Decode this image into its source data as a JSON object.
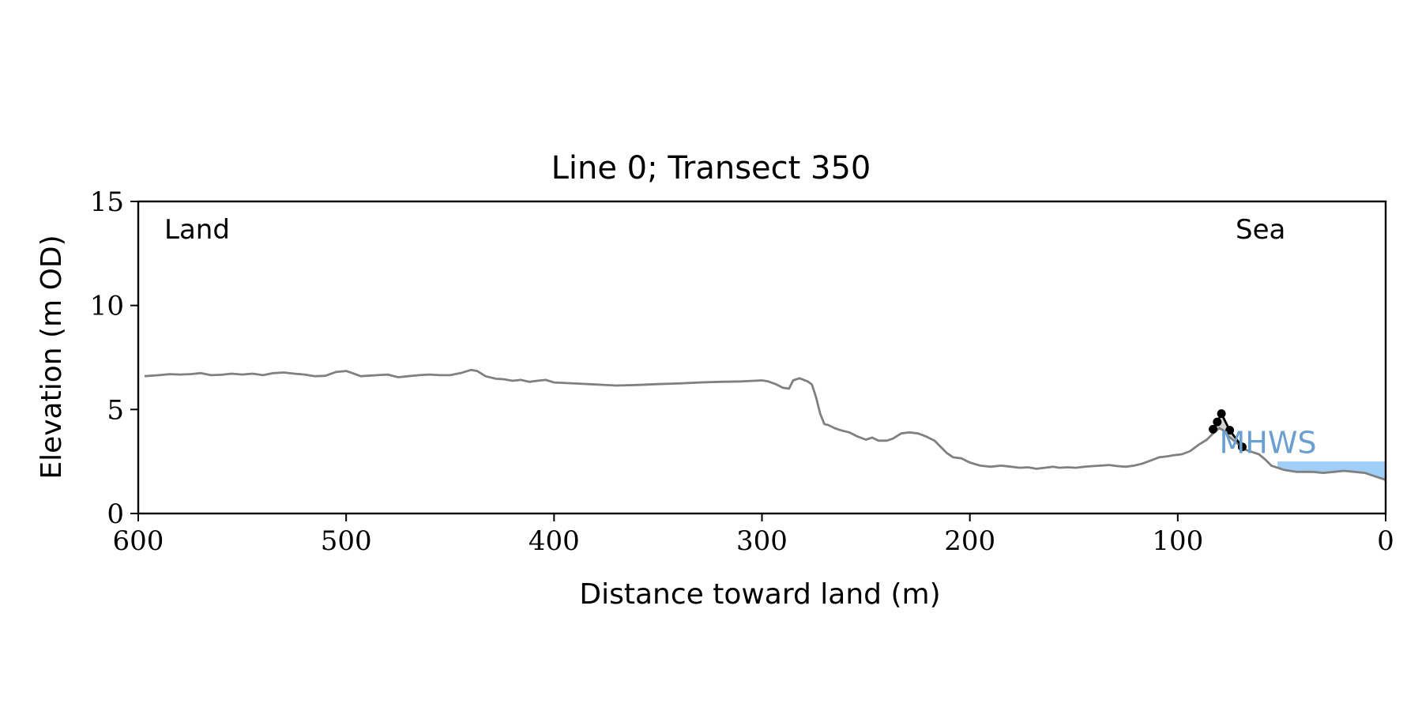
{
  "chart_data": {
    "type": "line",
    "title": "Line 0; Transect 350",
    "xlabel": "Distance toward land (m)",
    "ylabel": "Elevation (m OD)",
    "xlim": [
      600,
      0
    ],
    "ylim": [
      0,
      15
    ],
    "x_ticks": [
      600,
      500,
      400,
      300,
      200,
      100,
      0
    ],
    "y_ticks": [
      0,
      5,
      10,
      15
    ],
    "grid": false,
    "annotations": {
      "land": "Land",
      "sea": "Sea",
      "mhws": "MHWS"
    },
    "colors": {
      "profile": "#808080",
      "feature": "#000000",
      "feature_fill": "#d3d3d3",
      "sea_fill": "#9fcff7",
      "mhws_text": "#6a9fd0"
    },
    "mhws_level": 2.5,
    "sea_fill_x_range": [
      52,
      0
    ],
    "series": [
      {
        "role": "profile",
        "x": [
          597,
          590,
          585,
          580,
          575,
          570,
          565,
          560,
          555,
          550,
          545,
          540,
          535,
          530,
          525,
          520,
          515,
          510,
          505,
          500,
          497,
          493,
          490,
          485,
          480,
          475,
          470,
          465,
          460,
          455,
          450,
          445,
          440,
          437,
          433,
          428,
          424,
          420,
          416,
          412,
          408,
          404,
          400,
          390,
          380,
          370,
          360,
          350,
          340,
          330,
          320,
          310,
          300,
          297,
          293,
          290,
          287,
          285,
          282,
          278,
          276,
          274,
          272,
          270,
          268,
          265,
          262,
          258,
          254,
          250,
          247,
          244,
          240,
          237,
          233,
          229,
          225,
          221,
          217,
          214,
          211,
          208,
          204,
          200,
          195,
          190,
          185,
          180,
          176,
          172,
          168,
          164,
          160,
          157,
          153,
          149,
          145,
          141,
          137,
          133,
          129,
          125,
          121,
          117,
          113,
          109,
          105,
          102,
          98,
          94,
          90,
          86,
          84,
          82,
          80,
          78,
          76,
          73,
          70,
          67,
          64,
          61,
          58,
          55,
          52,
          49,
          46,
          43,
          40,
          35,
          30,
          25,
          20,
          15,
          10,
          7,
          4,
          1,
          0
        ],
        "y": [
          6.6,
          6.65,
          6.7,
          6.68,
          6.7,
          6.75,
          6.65,
          6.67,
          6.72,
          6.68,
          6.72,
          6.65,
          6.75,
          6.78,
          6.72,
          6.68,
          6.6,
          6.62,
          6.8,
          6.85,
          6.75,
          6.6,
          6.62,
          6.65,
          6.68,
          6.55,
          6.6,
          6.65,
          6.68,
          6.65,
          6.65,
          6.75,
          6.9,
          6.85,
          6.6,
          6.48,
          6.45,
          6.38,
          6.42,
          6.33,
          6.38,
          6.42,
          6.3,
          6.25,
          6.2,
          6.15,
          6.18,
          6.22,
          6.25,
          6.3,
          6.33,
          6.35,
          6.4,
          6.35,
          6.2,
          6.05,
          6.0,
          6.4,
          6.5,
          6.35,
          6.2,
          5.6,
          4.8,
          4.3,
          4.25,
          4.1,
          4.0,
          3.9,
          3.7,
          3.55,
          3.65,
          3.5,
          3.5,
          3.6,
          3.85,
          3.9,
          3.85,
          3.7,
          3.5,
          3.2,
          2.9,
          2.7,
          2.65,
          2.45,
          2.3,
          2.25,
          2.3,
          2.25,
          2.2,
          2.22,
          2.15,
          2.2,
          2.25,
          2.2,
          2.22,
          2.2,
          2.25,
          2.28,
          2.3,
          2.33,
          2.28,
          2.25,
          2.3,
          2.4,
          2.55,
          2.7,
          2.75,
          2.8,
          2.85,
          3.0,
          3.3,
          3.55,
          3.75,
          3.95,
          4.1,
          4.0,
          3.75,
          3.5,
          3.25,
          3.05,
          2.95,
          2.85,
          2.6,
          2.3,
          2.2,
          2.1,
          2.05,
          2.0,
          2.0,
          2.0,
          1.95,
          2.0,
          2.05,
          2.0,
          1.95,
          1.85,
          1.75,
          1.65,
          1.6
        ]
      },
      {
        "role": "feature",
        "x": [
          83,
          81,
          79,
          75,
          69
        ],
        "y": [
          4.05,
          4.4,
          4.8,
          4.0,
          3.2
        ]
      }
    ]
  }
}
